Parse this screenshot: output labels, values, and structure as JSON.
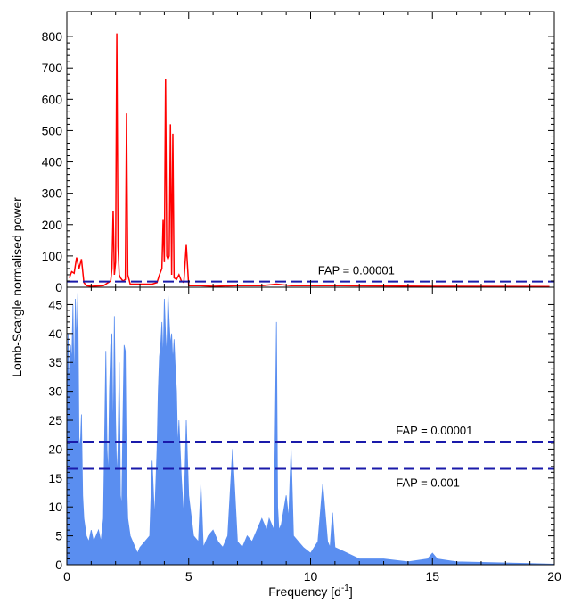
{
  "chart_data": [
    {
      "type": "line",
      "panel": "top",
      "title": "",
      "xlabel": "",
      "ylabel": "",
      "xlim": [
        0,
        20
      ],
      "ylim": [
        0,
        880
      ],
      "yticks": [
        0,
        100,
        200,
        300,
        400,
        500,
        600,
        700,
        800
      ],
      "ytick_labels": [
        "0",
        "100",
        "200",
        "300",
        "400",
        "500",
        "600",
        "700",
        "800"
      ],
      "grid": false,
      "color": "#ff0000",
      "series": [
        {
          "x": [
            0.1,
            0.2,
            0.3,
            0.4,
            0.5,
            0.6,
            0.7,
            0.8,
            1.0,
            1.5,
            1.8,
            1.85,
            1.9,
            1.95,
            2.0,
            2.05,
            2.1,
            2.15,
            2.2,
            2.3,
            2.4,
            2.45,
            2.5,
            2.6,
            3.5,
            3.7,
            3.8,
            3.9,
            3.95,
            4.0,
            4.05,
            4.1,
            4.15,
            4.2,
            4.25,
            4.3,
            4.35,
            4.4,
            4.5,
            4.6,
            4.7,
            4.8,
            4.9,
            5.0,
            5.5,
            6.0,
            7.0,
            8.0,
            8.6,
            9.2,
            10.5,
            11.0,
            15.0,
            19.8
          ],
          "y": [
            30,
            50,
            45,
            95,
            60,
            90,
            15,
            5,
            3,
            5,
            20,
            60,
            245,
            40,
            80,
            810,
            130,
            40,
            30,
            20,
            25,
            555,
            40,
            10,
            10,
            15,
            40,
            60,
            215,
            80,
            665,
            100,
            90,
            100,
            520,
            40,
            490,
            30,
            25,
            40,
            20,
            15,
            135,
            5,
            5,
            3,
            5,
            5,
            10,
            5,
            5,
            5,
            3,
            2
          ]
        }
      ],
      "hlines": [
        {
          "y": 18,
          "label": "FAP = 0.00001",
          "style": "dashed",
          "color": "#1a1aaa"
        }
      ]
    },
    {
      "type": "area",
      "panel": "bottom",
      "title": "",
      "xlabel": "Frequency [d",
      "xlabel_sup": "-1",
      "xlabel_suffix": "]",
      "ylabel": "Lomb-Scargle normalised power",
      "xlim": [
        0,
        20
      ],
      "ylim": [
        0,
        48
      ],
      "xticks": [
        0,
        5,
        10,
        15,
        20
      ],
      "xtick_labels": [
        "0",
        "5",
        "10",
        "15",
        "20"
      ],
      "yticks": [
        0,
        5,
        10,
        15,
        20,
        25,
        30,
        35,
        40,
        45
      ],
      "ytick_labels": [
        "0",
        "5",
        "10",
        "15",
        "20",
        "25",
        "30",
        "35",
        "40",
        "45"
      ],
      "grid": false,
      "color": "#5a8ef0",
      "series": [
        {
          "x": [
            0.0,
            0.05,
            0.1,
            0.15,
            0.2,
            0.25,
            0.3,
            0.35,
            0.4,
            0.45,
            0.5,
            0.55,
            0.6,
            0.65,
            0.7,
            0.8,
            0.9,
            1.0,
            1.1,
            1.2,
            1.3,
            1.4,
            1.5,
            1.6,
            1.65,
            1.7,
            1.75,
            1.8,
            1.85,
            1.9,
            1.95,
            2.0,
            2.05,
            2.1,
            2.15,
            2.2,
            2.25,
            2.3,
            2.35,
            2.4,
            2.45,
            2.5,
            2.6,
            2.7,
            2.8,
            2.9,
            3.0,
            3.2,
            3.4,
            3.5,
            3.6,
            3.7,
            3.75,
            3.8,
            3.85,
            3.9,
            3.95,
            4.0,
            4.05,
            4.1,
            4.15,
            4.2,
            4.25,
            4.3,
            4.35,
            4.4,
            4.45,
            4.5,
            4.55,
            4.6,
            4.7,
            4.8,
            4.9,
            5.0,
            5.2,
            5.4,
            5.5,
            5.6,
            5.8,
            6.0,
            6.2,
            6.4,
            6.6,
            6.8,
            7.0,
            7.2,
            7.4,
            7.6,
            7.8,
            8.0,
            8.1,
            8.2,
            8.3,
            8.4,
            8.5,
            8.6,
            8.65,
            8.7,
            8.8,
            9.0,
            9.1,
            9.2,
            9.3,
            9.5,
            9.7,
            10.0,
            10.3,
            10.5,
            10.7,
            10.8,
            10.9,
            11.0,
            11.5,
            12.0,
            13.0,
            14.0,
            14.8,
            15.0,
            15.2,
            16.0,
            17.0,
            18.0,
            19.0,
            20.0
          ],
          "y": [
            18,
            40,
            30,
            38,
            35,
            45,
            30,
            46,
            38,
            47,
            22,
            20,
            26,
            12,
            8,
            5,
            4,
            6,
            4,
            5,
            6,
            4,
            8,
            37,
            20,
            15,
            30,
            38,
            40,
            20,
            43,
            25,
            15,
            20,
            35,
            12,
            10,
            25,
            38,
            37,
            15,
            8,
            5,
            4,
            3,
            2,
            3,
            4,
            5,
            18,
            8,
            20,
            30,
            36,
            38,
            42,
            35,
            46,
            40,
            36,
            47,
            42,
            38,
            40,
            35,
            39,
            34,
            30,
            20,
            25,
            15,
            8,
            25,
            12,
            5,
            4,
            14,
            3,
            5,
            6,
            4,
            3,
            5,
            20,
            4,
            3,
            5,
            4,
            6,
            8,
            7,
            6,
            8,
            7,
            6,
            42,
            10,
            6,
            7,
            12,
            8,
            20,
            5,
            4,
            3,
            2,
            4,
            14,
            4,
            3,
            9,
            3,
            2,
            1,
            1,
            0.5,
            1,
            2,
            1,
            0.5,
            0.4,
            0.3,
            0.2,
            0.1
          ]
        }
      ],
      "hlines": [
        {
          "y": 21.3,
          "label": "FAP = 0.00001",
          "style": "dashed",
          "color": "#1a1aaa"
        },
        {
          "y": 16.6,
          "label": "FAP = 0.001",
          "style": "dashed",
          "color": "#1a1aaa"
        }
      ]
    }
  ]
}
